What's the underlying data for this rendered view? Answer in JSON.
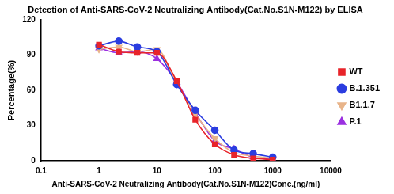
{
  "chart_data": {
    "type": "scatter",
    "title": "Detection of Anti-SARS-CoV-2 Neutralizing Antibody(Cat.No.S1N-M122) by ELISA",
    "x_label": "Anti-SARS-CoV-2 Neutralizing Antibody(Cat.No.S1N-M122)Conc.(ng/ml)",
    "y_label": "Percentage(%)",
    "x": [
      1,
      2.2,
      4.6,
      10,
      22,
      46,
      100,
      215,
      460,
      1000
    ],
    "series": [
      {
        "name": "WT",
        "color": "#e8242a",
        "marker": "square",
        "line_style": "solid",
        "values": [
          99,
          93,
          92,
          92,
          68,
          35,
          14,
          5,
          2,
          1
        ]
      },
      {
        "name": "B.1.351",
        "color": "#2b3de0",
        "marker": "circle",
        "line_style": "solid",
        "values": [
          98,
          102,
          97,
          93,
          65,
          43,
          26,
          9,
          6,
          3
        ]
      },
      {
        "name": "B1.1.7",
        "color": "#e8b48a",
        "marker": "triangle-down",
        "line_style": "solid",
        "values": [
          95,
          97,
          93,
          95,
          66,
          40,
          19,
          7,
          4,
          2
        ]
      },
      {
        "name": "P.1",
        "color": "#9b30e0",
        "marker": "triangle",
        "line_style": "solid",
        "values": [
          96,
          92,
          93,
          87,
          67,
          41,
          17,
          10,
          3,
          1
        ]
      }
    ],
    "xlim": [
      0.1,
      10000
    ],
    "xticks": [
      0.1,
      1,
      10,
      100,
      1000,
      10000
    ],
    "ylim": [
      0,
      120
    ],
    "yticks": [
      0,
      30,
      60,
      90,
      120
    ],
    "log": "x",
    "grid": false,
    "legend": "right"
  }
}
